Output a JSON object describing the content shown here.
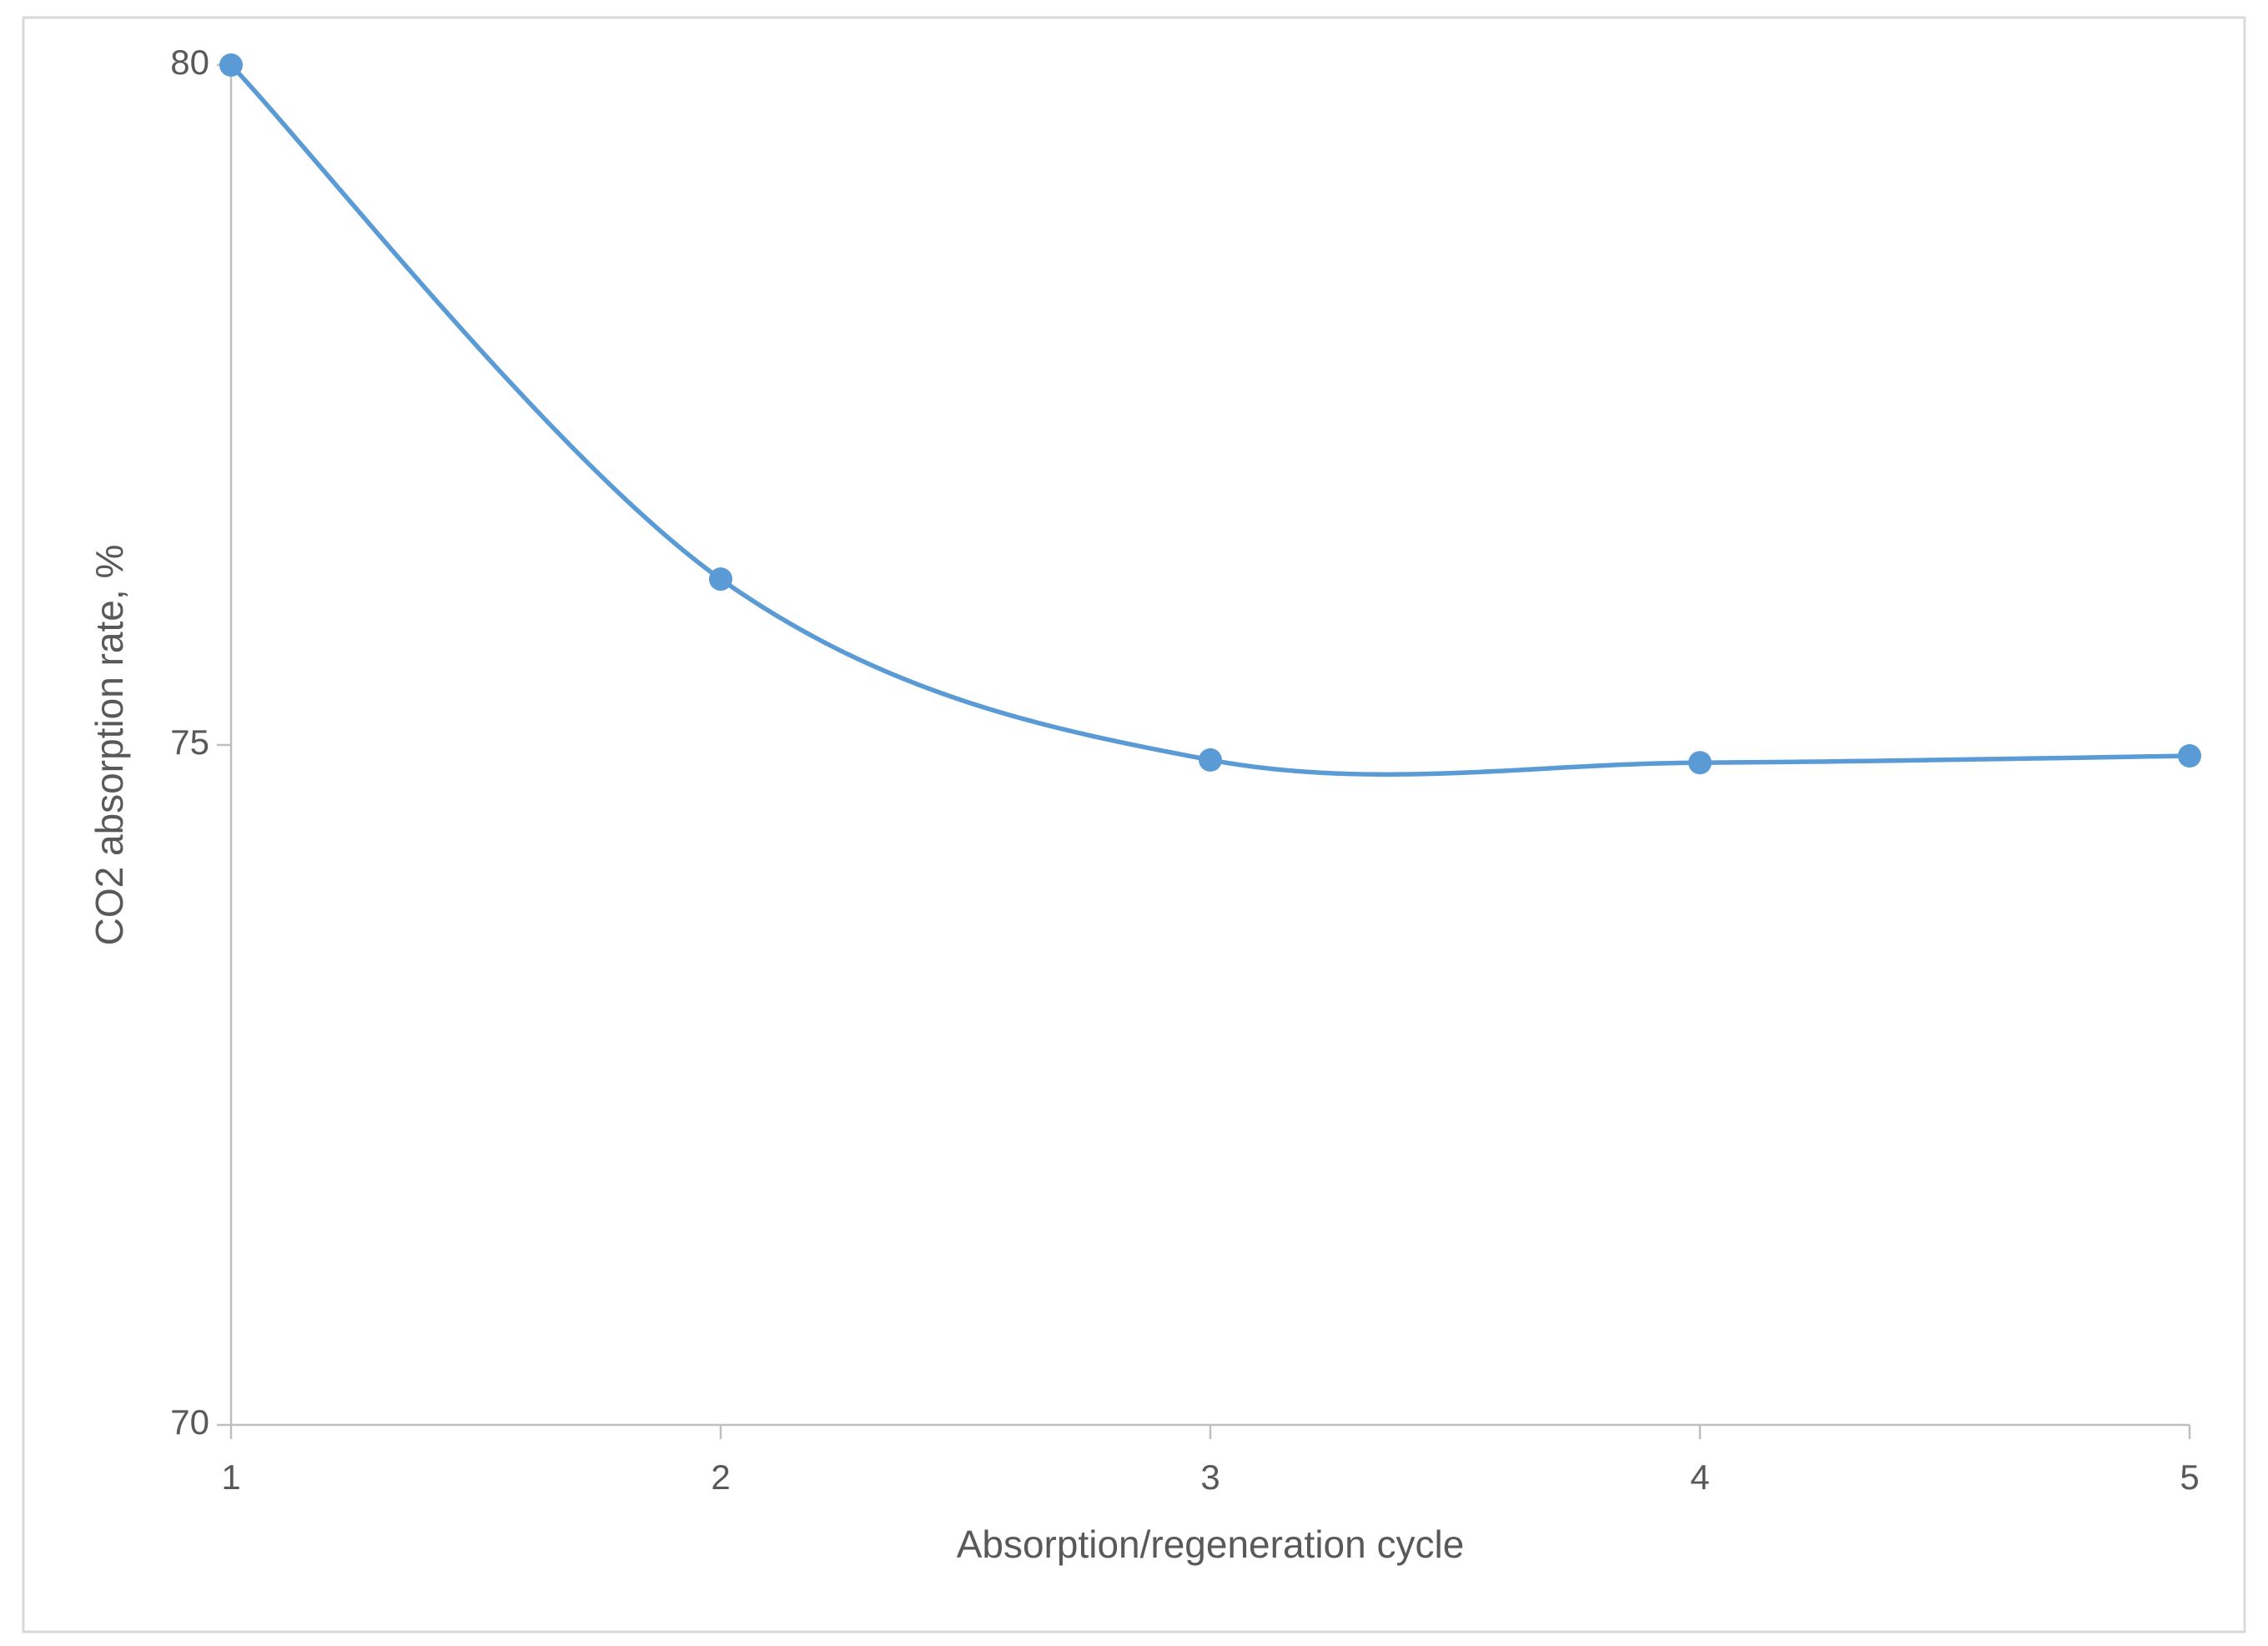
{
  "chart_data": {
    "type": "line",
    "x": [
      1,
      2,
      3,
      4,
      5
    ],
    "values": [
      80,
      76.22,
      74.89,
      74.87,
      74.92
    ],
    "color": "#5b9bd5",
    "smooth": true,
    "xlim": [
      1,
      5
    ],
    "xticks": [
      1,
      2,
      3,
      4,
      5
    ],
    "ylim": [
      70,
      80
    ],
    "yticks": [
      70,
      75,
      80
    ],
    "xlabel": "Absorption/regeneration cycle",
    "ylabel": "CO2 absorption rate, %"
  }
}
